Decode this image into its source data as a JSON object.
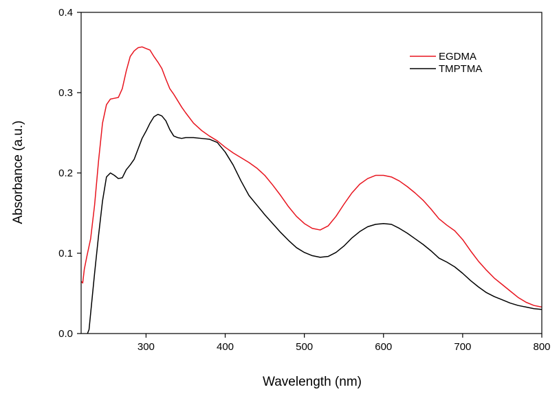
{
  "chart_data": {
    "type": "line",
    "title": "",
    "xlabel": "Wavelength (nm)",
    "ylabel": "Absorbance (a.u.)",
    "xlim": [
      218,
      800
    ],
    "ylim": [
      0.0,
      0.4
    ],
    "x_ticks": [
      300,
      400,
      500,
      600,
      700,
      800
    ],
    "x_tick_labels": [
      "300",
      "400",
      "500",
      "600",
      "700",
      "800"
    ],
    "y_ticks": [
      0.0,
      0.1,
      0.2,
      0.3,
      0.4
    ],
    "y_tick_labels": [
      "0.0",
      "0.1",
      "0.2",
      "0.3",
      "0.4"
    ],
    "grid": false,
    "legend_position": "top-right",
    "series": [
      {
        "name": "EGDMA",
        "color": "#e8141e",
        "x": [
          218,
          220,
          222,
          225,
          230,
          235,
          240,
          245,
          250,
          255,
          260,
          265,
          270,
          275,
          280,
          285,
          290,
          295,
          300,
          305,
          310,
          315,
          320,
          325,
          330,
          335,
          340,
          345,
          350,
          360,
          370,
          380,
          390,
          400,
          410,
          420,
          430,
          440,
          450,
          460,
          470,
          480,
          490,
          500,
          510,
          520,
          530,
          540,
          550,
          560,
          570,
          580,
          590,
          600,
          610,
          620,
          630,
          640,
          650,
          660,
          670,
          680,
          690,
          700,
          710,
          720,
          730,
          740,
          750,
          760,
          770,
          780,
          790,
          800
        ],
        "y": [
          0.065,
          0.063,
          0.08,
          0.095,
          0.118,
          0.16,
          0.215,
          0.262,
          0.285,
          0.292,
          0.293,
          0.294,
          0.305,
          0.327,
          0.345,
          0.352,
          0.356,
          0.357,
          0.355,
          0.353,
          0.345,
          0.338,
          0.33,
          0.317,
          0.305,
          0.298,
          0.29,
          0.282,
          0.275,
          0.262,
          0.253,
          0.246,
          0.24,
          0.232,
          0.225,
          0.219,
          0.213,
          0.206,
          0.197,
          0.185,
          0.172,
          0.158,
          0.146,
          0.137,
          0.131,
          0.129,
          0.134,
          0.146,
          0.161,
          0.175,
          0.186,
          0.193,
          0.197,
          0.197,
          0.195,
          0.19,
          0.183,
          0.175,
          0.166,
          0.155,
          0.143,
          0.135,
          0.128,
          0.117,
          0.103,
          0.09,
          0.079,
          0.069,
          0.061,
          0.053,
          0.045,
          0.039,
          0.035,
          0.033
        ]
      },
      {
        "name": "TMPTMA",
        "color": "#000000",
        "x": [
          226,
          228,
          230,
          235,
          240,
          245,
          250,
          255,
          260,
          265,
          270,
          275,
          280,
          285,
          290,
          295,
          300,
          305,
          310,
          315,
          320,
          325,
          330,
          335,
          340,
          345,
          350,
          360,
          370,
          380,
          390,
          400,
          410,
          420,
          430,
          440,
          450,
          460,
          470,
          480,
          490,
          500,
          510,
          520,
          530,
          540,
          550,
          560,
          570,
          580,
          590,
          600,
          610,
          620,
          630,
          640,
          650,
          660,
          670,
          680,
          690,
          700,
          710,
          720,
          730,
          740,
          750,
          760,
          770,
          780,
          790,
          800
        ],
        "y": [
          0.0,
          0.005,
          0.025,
          0.075,
          0.122,
          0.165,
          0.195,
          0.2,
          0.197,
          0.193,
          0.194,
          0.204,
          0.21,
          0.217,
          0.23,
          0.243,
          0.252,
          0.262,
          0.27,
          0.273,
          0.271,
          0.265,
          0.254,
          0.246,
          0.244,
          0.243,
          0.244,
          0.244,
          0.243,
          0.242,
          0.238,
          0.226,
          0.21,
          0.19,
          0.172,
          0.16,
          0.148,
          0.137,
          0.126,
          0.116,
          0.107,
          0.101,
          0.097,
          0.095,
          0.096,
          0.101,
          0.109,
          0.119,
          0.127,
          0.133,
          0.136,
          0.137,
          0.136,
          0.131,
          0.125,
          0.118,
          0.111,
          0.103,
          0.094,
          0.089,
          0.083,
          0.075,
          0.066,
          0.058,
          0.051,
          0.046,
          0.042,
          0.038,
          0.035,
          0.033,
          0.031,
          0.03
        ]
      }
    ]
  }
}
